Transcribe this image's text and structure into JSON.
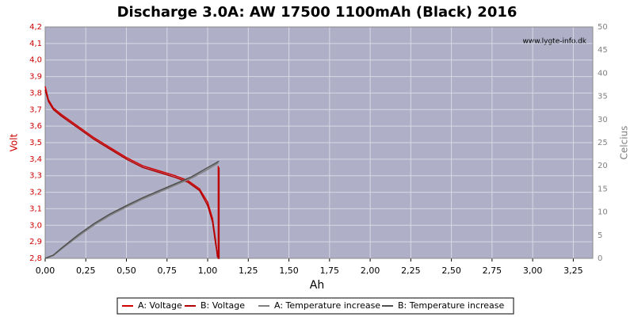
{
  "chart_data": {
    "type": "line",
    "title": "Discharge 3.0A: AW 17500 1100mAh (Black) 2016",
    "watermark": "www.lygte-info.dk",
    "xlabel": "Ah",
    "ylabel": "Volt",
    "y2label": "Celcius",
    "xlim": [
      0,
      3.37
    ],
    "ylim": [
      2.8,
      4.2
    ],
    "y2lim": [
      0,
      50
    ],
    "grid": true,
    "xticks": [
      {
        "value": 0,
        "label": "0,00"
      },
      {
        "value": 0.25,
        "label": "0,25"
      },
      {
        "value": 0.5,
        "label": "0,50"
      },
      {
        "value": 0.75,
        "label": "0,75"
      },
      {
        "value": 1,
        "label": "1,00"
      },
      {
        "value": 1.25,
        "label": "1,25"
      },
      {
        "value": 1.5,
        "label": "1,50"
      },
      {
        "value": 1.75,
        "label": "1,75"
      },
      {
        "value": 2,
        "label": "2,00"
      },
      {
        "value": 2.25,
        "label": "2,25"
      },
      {
        "value": 2.5,
        "label": "2,50"
      },
      {
        "value": 2.75,
        "label": "2,75"
      },
      {
        "value": 3,
        "label": "3,00"
      },
      {
        "value": 3.25,
        "label": "3,25"
      }
    ],
    "yticks": [
      {
        "value": 2.8,
        "label": "2,8"
      },
      {
        "value": 2.9,
        "label": "2,9"
      },
      {
        "value": 3,
        "label": "3,0"
      },
      {
        "value": 3.1,
        "label": "3,1"
      },
      {
        "value": 3.2,
        "label": "3,2"
      },
      {
        "value": 3.3,
        "label": "3,3"
      },
      {
        "value": 3.4,
        "label": "3,4"
      },
      {
        "value": 3.5,
        "label": "3,5"
      },
      {
        "value": 3.6,
        "label": "3,6"
      },
      {
        "value": 3.7,
        "label": "3,7"
      },
      {
        "value": 3.8,
        "label": "3,8"
      },
      {
        "value": 3.9,
        "label": "3,9"
      },
      {
        "value": 4,
        "label": "4,0"
      },
      {
        "value": 4.1,
        "label": "4,1"
      },
      {
        "value": 4.2,
        "label": "4,2"
      }
    ],
    "y2ticks": [
      0,
      5,
      10,
      15,
      20,
      25,
      30,
      35,
      40,
      45,
      50
    ],
    "series": [
      {
        "name": "A: Voltage",
        "color": "#d00000",
        "x": [
          0,
          0.02,
          0.05,
          0.1,
          0.2,
          0.3,
          0.4,
          0.5,
          0.6,
          0.7,
          0.8,
          0.88,
          0.95,
          1.0,
          1.03,
          1.05,
          1.06,
          1.065,
          1.065
        ],
        "values": [
          3.84,
          3.76,
          3.71,
          3.67,
          3.6,
          3.53,
          3.47,
          3.41,
          3.36,
          3.33,
          3.3,
          3.27,
          3.22,
          3.14,
          3.04,
          2.9,
          2.81,
          2.81,
          3.36
        ]
      },
      {
        "name": "B: Voltage",
        "color": "#b00000",
        "x": [
          0,
          0.02,
          0.05,
          0.1,
          0.2,
          0.3,
          0.4,
          0.5,
          0.6,
          0.7,
          0.8,
          0.88,
          0.95,
          1.0,
          1.03,
          1.05,
          1.065,
          1.07,
          1.07
        ],
        "values": [
          3.82,
          3.75,
          3.7,
          3.66,
          3.59,
          3.52,
          3.46,
          3.4,
          3.35,
          3.32,
          3.29,
          3.26,
          3.21,
          3.12,
          3.02,
          2.88,
          2.8,
          2.8,
          3.35
        ]
      },
      {
        "name": "A: Temperature increase",
        "color": "#808080",
        "axis": "y2",
        "x": [
          0,
          0.05,
          0.1,
          0.2,
          0.3,
          0.4,
          0.5,
          0.6,
          0.7,
          0.8,
          0.9,
          1.0,
          1.065
        ],
        "values": [
          0,
          0.6,
          2,
          4.7,
          7.2,
          9.3,
          11.1,
          12.8,
          14.3,
          15.8,
          17.3,
          19.2,
          20.6
        ]
      },
      {
        "name": "B: Temperature increase",
        "color": "#505050",
        "axis": "y2",
        "x": [
          0,
          0.05,
          0.1,
          0.2,
          0.3,
          0.4,
          0.5,
          0.6,
          0.7,
          0.8,
          0.9,
          1.0,
          1.07
        ],
        "values": [
          0,
          0.7,
          2.2,
          5,
          7.5,
          9.6,
          11.4,
          13.1,
          14.6,
          16.1,
          17.6,
          19.6,
          21
        ]
      }
    ]
  }
}
